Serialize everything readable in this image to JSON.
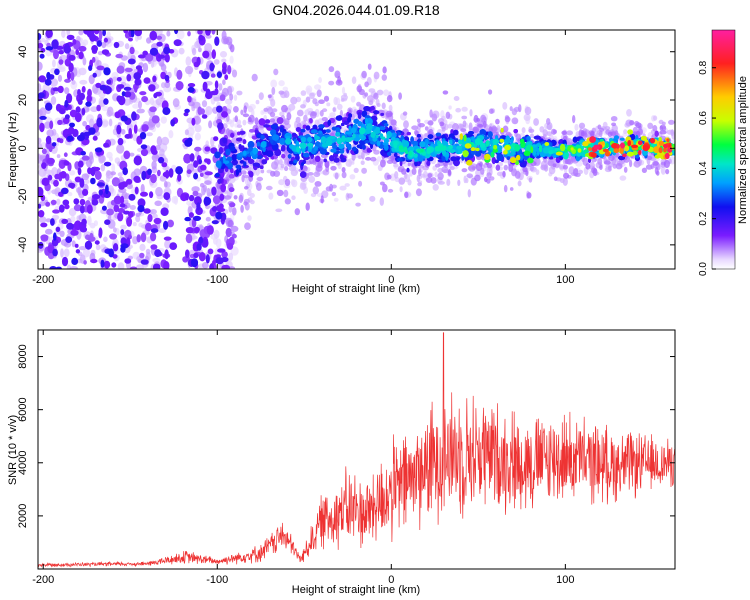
{
  "title": "GN04.2026.044.01.09.R18",
  "colors": {
    "spectrogram_cmap": [
      "#ffffff",
      "#e8d8ff",
      "#7a1cff",
      "#1010f0",
      "#00a0ff",
      "#00e6c8",
      "#00ff40",
      "#c8ff00",
      "#ffcc00",
      "#ff2020",
      "#ff1fa0"
    ],
    "snr_line": "#ee3333"
  },
  "chart_data": [
    {
      "type": "heatmap",
      "name": "spectrogram",
      "xlabel": "Height of straight line (km)",
      "ylabel": "Frequency (Hz)",
      "xlim": [
        -203,
        163
      ],
      "ylim": [
        -50,
        49
      ],
      "xticks": [
        -200,
        -100,
        0,
        100
      ],
      "xtick_labels": [
        "-200",
        "-100",
        "0",
        "100"
      ],
      "yticks": [
        -40,
        -20,
        0,
        20,
        40
      ],
      "ytick_labels": [
        "-40",
        "-20",
        "0",
        "20",
        "40"
      ],
      "colorbar": {
        "label": "Normalized spectral amplitude",
        "range": [
          0,
          0.95
        ],
        "ticks": [
          0.0,
          0.2,
          0.4,
          0.6,
          0.8
        ],
        "tick_labels": [
          "0.0",
          "0.2",
          "0.4",
          "0.6",
          "0.8"
        ]
      },
      "ridge_center_hz": [
        {
          "x": -100,
          "y": -6
        },
        {
          "x": -80,
          "y": -2
        },
        {
          "x": -65,
          "y": 6
        },
        {
          "x": -55,
          "y": 0
        },
        {
          "x": -40,
          "y": 3
        },
        {
          "x": -25,
          "y": 4
        },
        {
          "x": -15,
          "y": 8
        },
        {
          "x": 0,
          "y": 3
        },
        {
          "x": 10,
          "y": -2
        },
        {
          "x": 25,
          "y": 0
        },
        {
          "x": 50,
          "y": 2
        },
        {
          "x": 75,
          "y": 0
        },
        {
          "x": 100,
          "y": -1
        },
        {
          "x": 130,
          "y": 1
        },
        {
          "x": 160,
          "y": 0
        }
      ]
    },
    {
      "type": "line",
      "name": "snr",
      "xlabel": "Height of straight line (km)",
      "ylabel": "SNR (10 * v/v)",
      "xlim": [
        -203,
        163
      ],
      "ylim": [
        0,
        9000
      ],
      "xticks": [
        -200,
        -100,
        0,
        100
      ],
      "xtick_labels": [
        "-200",
        "-100",
        "0",
        "100"
      ],
      "yticks": [
        2000,
        4000,
        6000,
        8000
      ],
      "ytick_labels": [
        "2000",
        "4000",
        "6000",
        "8000"
      ],
      "envelope": [
        {
          "x": -203,
          "mean": 150,
          "spread": 80
        },
        {
          "x": -140,
          "mean": 200,
          "spread": 100
        },
        {
          "x": -118,
          "mean": 450,
          "spread": 300
        },
        {
          "x": -100,
          "mean": 280,
          "spread": 150
        },
        {
          "x": -75,
          "mean": 600,
          "spread": 400
        },
        {
          "x": -62,
          "mean": 1300,
          "spread": 700
        },
        {
          "x": -52,
          "mean": 350,
          "spread": 200
        },
        {
          "x": -40,
          "mean": 1800,
          "spread": 1200
        },
        {
          "x": -25,
          "mean": 2300,
          "spread": 1800
        },
        {
          "x": -15,
          "mean": 2100,
          "spread": 1600
        },
        {
          "x": 0,
          "mean": 2900,
          "spread": 2200
        },
        {
          "x": 15,
          "mean": 3600,
          "spread": 2400
        },
        {
          "x": 30,
          "mean": 4300,
          "spread": 2800
        },
        {
          "x": 50,
          "mean": 4400,
          "spread": 2600
        },
        {
          "x": 75,
          "mean": 4000,
          "spread": 2200
        },
        {
          "x": 100,
          "mean": 4200,
          "spread": 2000
        },
        {
          "x": 130,
          "mean": 3900,
          "spread": 1600
        },
        {
          "x": 163,
          "mean": 4000,
          "spread": 1000
        }
      ],
      "peak": {
        "x": 30,
        "y": 8900
      }
    }
  ]
}
